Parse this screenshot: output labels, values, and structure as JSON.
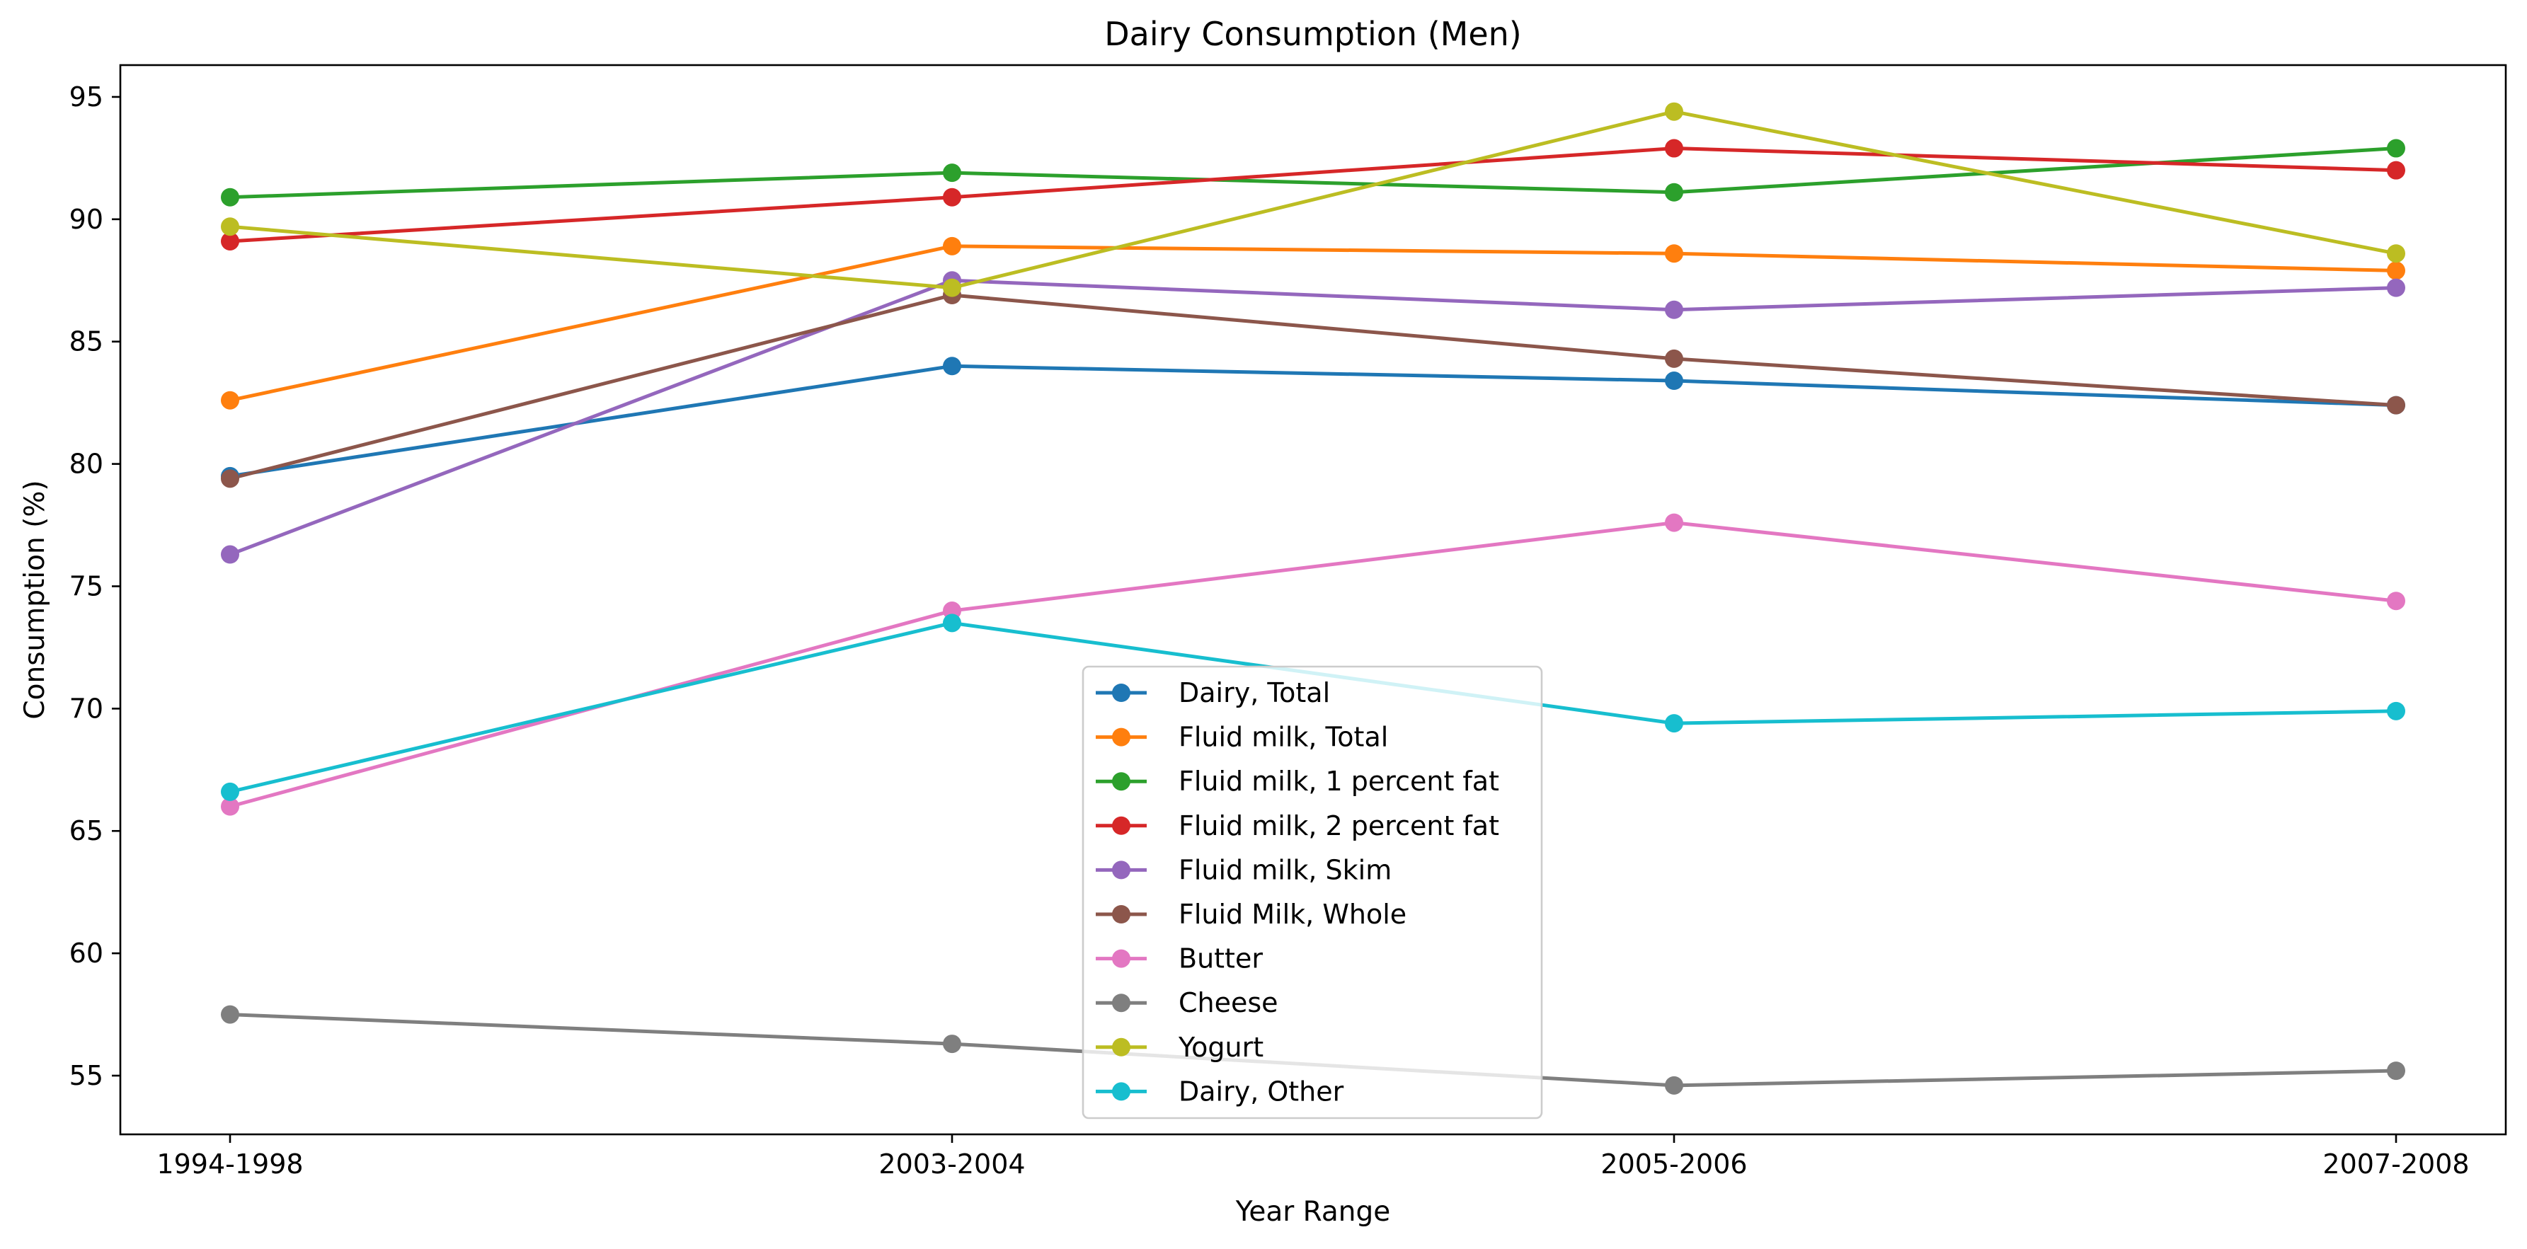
{
  "chart_data": {
    "type": "line",
    "title": "Dairy Consumption (Men)",
    "xlabel": "Year Range",
    "ylabel": "Consumption (%)",
    "categories": [
      "1994-1998",
      "2003-2004",
      "2005-2006",
      "2007-2008"
    ],
    "yticks": [
      55,
      60,
      65,
      70,
      75,
      80,
      85,
      90,
      95
    ],
    "ylim": [
      52.6,
      96.3
    ],
    "grid": false,
    "legend_position": "lower center",
    "marker": "circle",
    "series": [
      {
        "name": "Dairy, Total",
        "color": "#1f77b4",
        "values": [
          79.5,
          84.0,
          83.4,
          82.4
        ]
      },
      {
        "name": "Fluid milk, Total",
        "color": "#ff7f0e",
        "values": [
          82.6,
          88.9,
          88.6,
          87.9
        ]
      },
      {
        "name": "Fluid milk, 1 percent fat",
        "color": "#2ca02c",
        "values": [
          90.9,
          91.9,
          91.1,
          92.9
        ]
      },
      {
        "name": "Fluid milk, 2 percent fat",
        "color": "#d62728",
        "values": [
          89.1,
          90.9,
          92.9,
          92.0
        ]
      },
      {
        "name": "Fluid milk, Skim",
        "color": "#9467bd",
        "values": [
          76.3,
          87.5,
          86.3,
          87.2
        ]
      },
      {
        "name": "Fluid Milk, Whole",
        "color": "#8c564b",
        "values": [
          79.4,
          86.9,
          84.3,
          82.4
        ]
      },
      {
        "name": "Butter",
        "color": "#e377c2",
        "values": [
          66.0,
          74.0,
          77.6,
          74.4
        ]
      },
      {
        "name": "Cheese",
        "color": "#7f7f7f",
        "values": [
          57.5,
          56.3,
          54.6,
          55.2
        ]
      },
      {
        "name": "Yogurt",
        "color": "#bcbd22",
        "values": [
          89.7,
          87.2,
          94.4,
          88.6
        ]
      },
      {
        "name": "Dairy, Other",
        "color": "#17becf",
        "values": [
          66.6,
          73.5,
          69.4,
          69.9
        ]
      }
    ]
  }
}
